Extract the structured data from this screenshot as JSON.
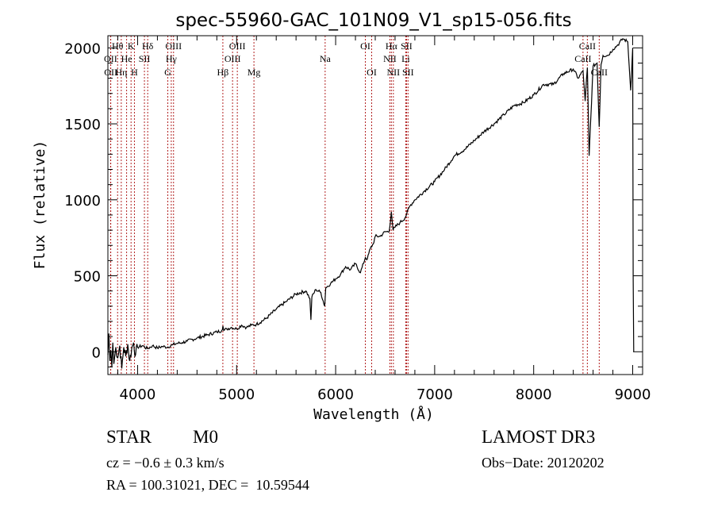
{
  "chart_data": {
    "type": "line",
    "title": "spec-55960-GAC_101N09_V1_sp15-056.fits",
    "xlabel": "Wavelength (Å)",
    "ylabel": "Flux (relative)",
    "xlim": [
      3700,
      9100
    ],
    "ylim": [
      -150,
      2080
    ],
    "x_ticks": [
      4000,
      5000,
      6000,
      7000,
      8000,
      9000
    ],
    "x_tick_labels": [
      "4000",
      "5000",
      "6000",
      "7000",
      "8000",
      "9000"
    ],
    "x_minor_step": 200,
    "y_ticks": [
      0,
      500,
      1000,
      1500,
      2000
    ],
    "y_tick_labels": [
      "0",
      "500",
      "1000",
      "1500",
      "2000"
    ],
    "y_minor_step": 100,
    "grid": false,
    "line_color": "#000000",
    "marker_line_color": "#b22222",
    "series": [
      {
        "name": "spectrum",
        "x": [
          3700,
          3710,
          3720,
          3730,
          3740,
          3750,
          3760,
          3780,
          3800,
          3820,
          3840,
          3860,
          3880,
          3900,
          3920,
          3940,
          3960,
          3980,
          4000,
          4050,
          4100,
          4150,
          4200,
          4250,
          4300,
          4350,
          4400,
          4450,
          4500,
          4600,
          4700,
          4800,
          4850,
          4862,
          4870,
          4900,
          4950,
          5000,
          5050,
          5100,
          5150,
          5200,
          5300,
          5400,
          5500,
          5600,
          5700,
          5740,
          5750,
          5760,
          5800,
          5850,
          5890,
          5900,
          5950,
          6000,
          6050,
          6100,
          6150,
          6200,
          6250,
          6300,
          6320,
          6350,
          6380,
          6400,
          6450,
          6500,
          6540,
          6563,
          6580,
          6600,
          6650,
          6700,
          6750,
          6800,
          6900,
          7000,
          7100,
          7200,
          7300,
          7400,
          7500,
          7600,
          7700,
          7800,
          7900,
          8000,
          8100,
          8200,
          8300,
          8400,
          8450,
          8498,
          8520,
          8542,
          8560,
          8600,
          8640,
          8662,
          8680,
          8700,
          8750,
          8800,
          8850,
          8900,
          8950,
          8980,
          9000,
          9005,
          9010
        ],
        "y": [
          -20,
          120,
          -60,
          10,
          -100,
          60,
          -80,
          30,
          -40,
          40,
          -110,
          30,
          -30,
          50,
          -60,
          20,
          60,
          -20,
          30,
          40,
          20,
          40,
          25,
          35,
          30,
          45,
          55,
          60,
          70,
          90,
          110,
          130,
          140,
          170,
          140,
          150,
          160,
          150,
          175,
          160,
          175,
          180,
          220,
          280,
          330,
          380,
          400,
          350,
          210,
          360,
          410,
          390,
          300,
          420,
          450,
          480,
          510,
          560,
          540,
          580,
          520,
          620,
          610,
          680,
          710,
          760,
          760,
          790,
          790,
          920,
          800,
          820,
          850,
          880,
          960,
          1000,
          1060,
          1120,
          1200,
          1290,
          1330,
          1390,
          1450,
          1500,
          1560,
          1620,
          1640,
          1690,
          1760,
          1760,
          1830,
          1860,
          1800,
          1850,
          1650,
          1870,
          1290,
          1880,
          1900,
          1480,
          1890,
          1950,
          1950,
          1990,
          2020,
          2060,
          2040,
          1720,
          2000,
          500,
          0
        ]
      }
    ],
    "line_markers": [
      {
        "label": "Hθ",
        "x": 3798,
        "row": 1
      },
      {
        "label": "OII",
        "x": 3727,
        "row": 2
      },
      {
        "label": "OII",
        "x": 3729,
        "row": 3
      },
      {
        "label": "K",
        "x": 3934,
        "row": 1
      },
      {
        "label": "He",
        "x": 3889,
        "row": 2
      },
      {
        "label": "Hη",
        "x": 3835,
        "row": 3
      },
      {
        "label": "SII",
        "x": 4069,
        "row": 2
      },
      {
        "label": "H",
        "x": 3968,
        "row": 3
      },
      {
        "label": "Hδ",
        "x": 4102,
        "row": 1
      },
      {
        "label": "OIII",
        "x": 4363,
        "row": 1
      },
      {
        "label": "Hγ",
        "x": 4340,
        "row": 2
      },
      {
        "label": "G",
        "x": 4305,
        "row": 3
      },
      {
        "label": "OIII",
        "x": 5007,
        "row": 1
      },
      {
        "label": "OIII",
        "x": 4959,
        "row": 2
      },
      {
        "label": "Hβ",
        "x": 4861,
        "row": 3
      },
      {
        "label": "Mg",
        "x": 5175,
        "row": 3
      },
      {
        "label": "Na",
        "x": 5894,
        "row": 2
      },
      {
        "label": "OI",
        "x": 6300,
        "row": 1
      },
      {
        "label": "OI",
        "x": 6364,
        "row": 3
      },
      {
        "label": "Hα",
        "x": 6563,
        "row": 1
      },
      {
        "label": "NII",
        "x": 6548,
        "row": 2
      },
      {
        "label": "NII",
        "x": 6583,
        "row": 3
      },
      {
        "label": "SII",
        "x": 6716,
        "row": 1
      },
      {
        "label": "Li",
        "x": 6708,
        "row": 2
      },
      {
        "label": "SII",
        "x": 6731,
        "row": 3
      },
      {
        "label": "CaII",
        "x": 8542,
        "row": 1
      },
      {
        "label": "CaII",
        "x": 8498,
        "row": 2
      },
      {
        "label": "CaII",
        "x": 8662,
        "row": 3
      }
    ]
  },
  "info": {
    "object_class": "STAR",
    "subclass": "M0",
    "redshift": "cz = −0.6 ± 0.3 km/s",
    "coords": "RA = 100.31021, DEC =  10.59544",
    "survey": "LAMOST DR3",
    "obs_date": "Obs−Date: 20120202"
  }
}
